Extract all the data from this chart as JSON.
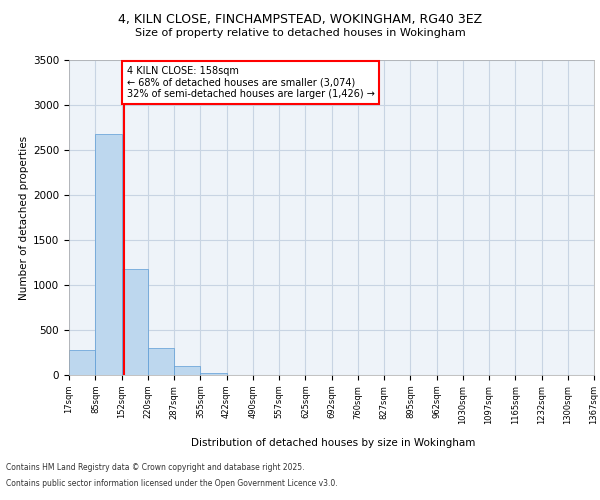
{
  "title_line1": "4, KILN CLOSE, FINCHAMPSTEAD, WOKINGHAM, RG40 3EZ",
  "title_line2": "Size of property relative to detached houses in Wokingham",
  "xlabel": "Distribution of detached houses by size in Wokingham",
  "ylabel": "Number of detached properties",
  "property_size": 158,
  "property_label": "4 KILN CLOSE: 158sqm",
  "annotation_line2": "← 68% of detached houses are smaller (3,074)",
  "annotation_line3": "32% of semi-detached houses are larger (1,426) →",
  "bar_color": "#bdd7ee",
  "bar_edge_color": "#5b9bd5",
  "vline_color": "red",
  "grid_color": "#c8d4e3",
  "background_color": "#eef3f9",
  "footer_line1": "Contains HM Land Registry data © Crown copyright and database right 2025.",
  "footer_line2": "Contains public sector information licensed under the Open Government Licence v3.0.",
  "bins": [
    17,
    85,
    152,
    220,
    287,
    355,
    422,
    490,
    557,
    625,
    692,
    760,
    827,
    895,
    962,
    1030,
    1097,
    1165,
    1232,
    1300,
    1367
  ],
  "counts": [
    280,
    2680,
    1175,
    295,
    95,
    25,
    0,
    0,
    0,
    0,
    0,
    0,
    0,
    0,
    0,
    0,
    0,
    0,
    0,
    0
  ],
  "ylim": [
    0,
    3500
  ],
  "yticks": [
    0,
    500,
    1000,
    1500,
    2000,
    2500,
    3000,
    3500
  ]
}
